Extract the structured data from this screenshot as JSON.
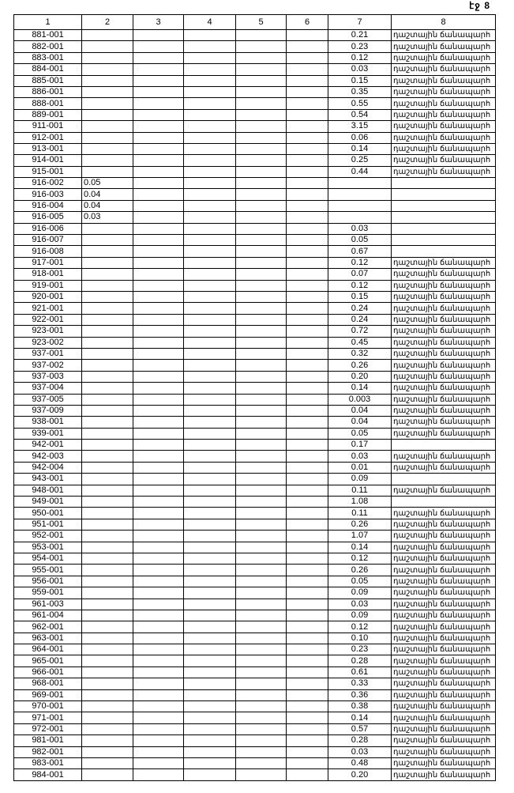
{
  "page_label": "էջ 8",
  "headers": [
    "1",
    "2",
    "3",
    "4",
    "5",
    "6",
    "7",
    "8"
  ],
  "road_label": "դաշտային ճանապարհ",
  "rows": [
    [
      "881-001",
      "",
      0.21,
      true
    ],
    [
      "882-001",
      "",
      "0.23",
      true
    ],
    [
      "883-001",
      "",
      "0.12",
      true
    ],
    [
      "884-001",
      "",
      "0.03",
      true
    ],
    [
      "885-001",
      "",
      "0.15",
      true
    ],
    [
      "886-001",
      "",
      "0.35",
      true
    ],
    [
      "888-001",
      "",
      "0.55",
      true
    ],
    [
      "889-001",
      "",
      "0.54",
      true
    ],
    [
      "911-001",
      "",
      "3.15",
      true
    ],
    [
      "912-001",
      "",
      "0.06",
      true
    ],
    [
      "913-001",
      "",
      "0.14",
      true
    ],
    [
      "914-001",
      "",
      "0.25",
      true
    ],
    [
      "915-001",
      "",
      "0.44",
      true
    ],
    [
      "916-002",
      "0.05",
      "",
      false
    ],
    [
      "916-003",
      "0.04",
      "",
      false
    ],
    [
      "916-004",
      "0.04",
      "",
      false
    ],
    [
      "916-005",
      "0.03",
      "",
      false
    ],
    [
      "916-006",
      "",
      "0.03",
      false
    ],
    [
      "916-007",
      "",
      "0.05",
      false
    ],
    [
      "916-008",
      "",
      "0.67",
      false
    ],
    [
      "917-001",
      "",
      "0.12",
      true
    ],
    [
      "918-001",
      "",
      "0.07",
      true
    ],
    [
      "919-001",
      "",
      "0.12",
      true
    ],
    [
      "920-001",
      "",
      "0.15",
      true
    ],
    [
      "921-001",
      "",
      "0.24",
      true
    ],
    [
      "922-001",
      "",
      "0.24",
      true
    ],
    [
      "923-001",
      "",
      "0.72",
      true
    ],
    [
      "923-002",
      "",
      "0.45",
      true
    ],
    [
      "937-001",
      "",
      "0.32",
      true
    ],
    [
      "937-002",
      "",
      "0.26",
      true
    ],
    [
      "937-003",
      "",
      "0.20",
      true
    ],
    [
      "937-004",
      "",
      "0.14",
      true
    ],
    [
      "937-005",
      "",
      "0.003",
      true
    ],
    [
      "937-009",
      "",
      "0.04",
      true
    ],
    [
      "938-001",
      "",
      "0.04",
      true
    ],
    [
      "939-001",
      "",
      "0.05",
      true
    ],
    [
      "942-001",
      "",
      "0.17",
      false
    ],
    [
      "942-003",
      "",
      "0.03",
      true
    ],
    [
      "942-004",
      "",
      "0.01",
      true
    ],
    [
      "943-001",
      "",
      "0.09",
      false
    ],
    [
      "948-001",
      "",
      "0.11",
      true
    ],
    [
      "949-001",
      "",
      "1.08",
      false
    ],
    [
      "950-001",
      "",
      "0.11",
      true
    ],
    [
      "951-001",
      "",
      "0.26",
      true
    ],
    [
      "952-001",
      "",
      "1.07",
      true
    ],
    [
      "953-001",
      "",
      "0.14",
      true
    ],
    [
      "954-001",
      "",
      "0.12",
      true
    ],
    [
      "955-001",
      "",
      "0.26",
      true
    ],
    [
      "956-001",
      "",
      "0.05",
      true
    ],
    [
      "959-001",
      "",
      "0.09",
      true
    ],
    [
      "961-003",
      "",
      "0.03",
      true
    ],
    [
      "961-004",
      "",
      "0.09",
      true
    ],
    [
      "962-001",
      "",
      "0.12",
      true
    ],
    [
      "963-001",
      "",
      "0.10",
      true
    ],
    [
      "964-001",
      "",
      "0.23",
      true
    ],
    [
      "965-001",
      "",
      "0.28",
      true
    ],
    [
      "966-001",
      "",
      "0.61",
      true
    ],
    [
      "968-001",
      "",
      "0.33",
      true
    ],
    [
      "969-001",
      "",
      "0.36",
      true
    ],
    [
      "970-001",
      "",
      "0.38",
      true
    ],
    [
      "971-001",
      "",
      "0.14",
      true
    ],
    [
      "972-001",
      "",
      "0.57",
      true
    ],
    [
      "981-001",
      "",
      "0.28",
      true
    ],
    [
      "982-001",
      "",
      "0.03",
      true
    ],
    [
      "983-001",
      "",
      "0.48",
      true
    ],
    [
      "984-001",
      "",
      "0.20",
      true
    ]
  ]
}
